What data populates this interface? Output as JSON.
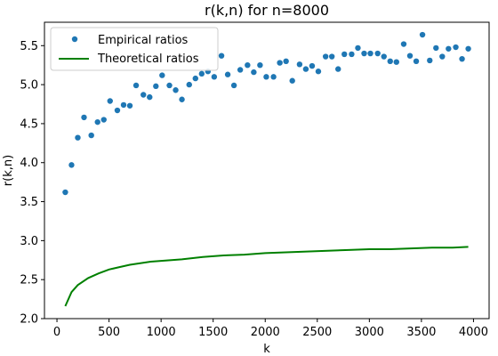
{
  "chart_data": {
    "type": "scatter",
    "title": "r(k,n) for n=8000",
    "xlabel": "k",
    "ylabel": "r(k,n)",
    "xlim": [
      -120,
      4150
    ],
    "ylim": [
      2.0,
      5.8
    ],
    "xticks": [
      0,
      500,
      1000,
      1500,
      2000,
      2500,
      3000,
      3500,
      4000
    ],
    "yticks": [
      2.0,
      2.5,
      3.0,
      3.5,
      4.0,
      4.5,
      5.0,
      5.5
    ],
    "grid": false,
    "legend_position": "top-left",
    "series": [
      {
        "name": "Empirical ratios",
        "kind": "scatter",
        "color": "#1f77b4",
        "points": [
          [
            80,
            3.62
          ],
          [
            140,
            3.97
          ],
          [
            200,
            4.32
          ],
          [
            260,
            4.58
          ],
          [
            330,
            4.35
          ],
          [
            390,
            4.52
          ],
          [
            450,
            4.55
          ],
          [
            510,
            4.79
          ],
          [
            580,
            4.67
          ],
          [
            640,
            4.74
          ],
          [
            700,
            4.73
          ],
          [
            760,
            4.99
          ],
          [
            830,
            4.87
          ],
          [
            890,
            4.84
          ],
          [
            950,
            4.98
          ],
          [
            1010,
            5.12
          ],
          [
            1080,
            4.99
          ],
          [
            1140,
            4.93
          ],
          [
            1200,
            4.81
          ],
          [
            1270,
            5.0
          ],
          [
            1330,
            5.08
          ],
          [
            1390,
            5.14
          ],
          [
            1450,
            5.17
          ],
          [
            1510,
            5.1
          ],
          [
            1580,
            5.37
          ],
          [
            1640,
            5.13
          ],
          [
            1700,
            4.99
          ],
          [
            1760,
            5.19
          ],
          [
            1830,
            5.25
          ],
          [
            1890,
            5.16
          ],
          [
            1950,
            5.25
          ],
          [
            2010,
            5.1
          ],
          [
            2080,
            5.1
          ],
          [
            2140,
            5.28
          ],
          [
            2200,
            5.3
          ],
          [
            2260,
            5.05
          ],
          [
            2330,
            5.26
          ],
          [
            2390,
            5.2
          ],
          [
            2450,
            5.24
          ],
          [
            2510,
            5.17
          ],
          [
            2580,
            5.36
          ],
          [
            2640,
            5.36
          ],
          [
            2700,
            5.2
          ],
          [
            2760,
            5.39
          ],
          [
            2830,
            5.39
          ],
          [
            2890,
            5.47
          ],
          [
            2950,
            5.4
          ],
          [
            3010,
            5.4
          ],
          [
            3080,
            5.4
          ],
          [
            3140,
            5.36
          ],
          [
            3200,
            5.3
          ],
          [
            3260,
            5.29
          ],
          [
            3330,
            5.52
          ],
          [
            3390,
            5.37
          ],
          [
            3450,
            5.3
          ],
          [
            3510,
            5.64
          ],
          [
            3580,
            5.31
          ],
          [
            3640,
            5.47
          ],
          [
            3700,
            5.36
          ],
          [
            3760,
            5.46
          ],
          [
            3830,
            5.48
          ],
          [
            3890,
            5.33
          ],
          [
            3950,
            5.46
          ]
        ]
      },
      {
        "name": "Theoretical ratios",
        "kind": "line",
        "color": "#008000",
        "points": [
          [
            80,
            2.16
          ],
          [
            140,
            2.34
          ],
          [
            200,
            2.43
          ],
          [
            300,
            2.52
          ],
          [
            400,
            2.58
          ],
          [
            500,
            2.63
          ],
          [
            600,
            2.66
          ],
          [
            700,
            2.69
          ],
          [
            800,
            2.71
          ],
          [
            900,
            2.73
          ],
          [
            1000,
            2.74
          ],
          [
            1200,
            2.76
          ],
          [
            1400,
            2.79
          ],
          [
            1600,
            2.81
          ],
          [
            1800,
            2.82
          ],
          [
            2000,
            2.84
          ],
          [
            2200,
            2.85
          ],
          [
            2400,
            2.86
          ],
          [
            2600,
            2.87
          ],
          [
            2800,
            2.88
          ],
          [
            3000,
            2.89
          ],
          [
            3200,
            2.89
          ],
          [
            3400,
            2.9
          ],
          [
            3600,
            2.91
          ],
          [
            3800,
            2.91
          ],
          [
            3950,
            2.92
          ]
        ]
      }
    ]
  }
}
